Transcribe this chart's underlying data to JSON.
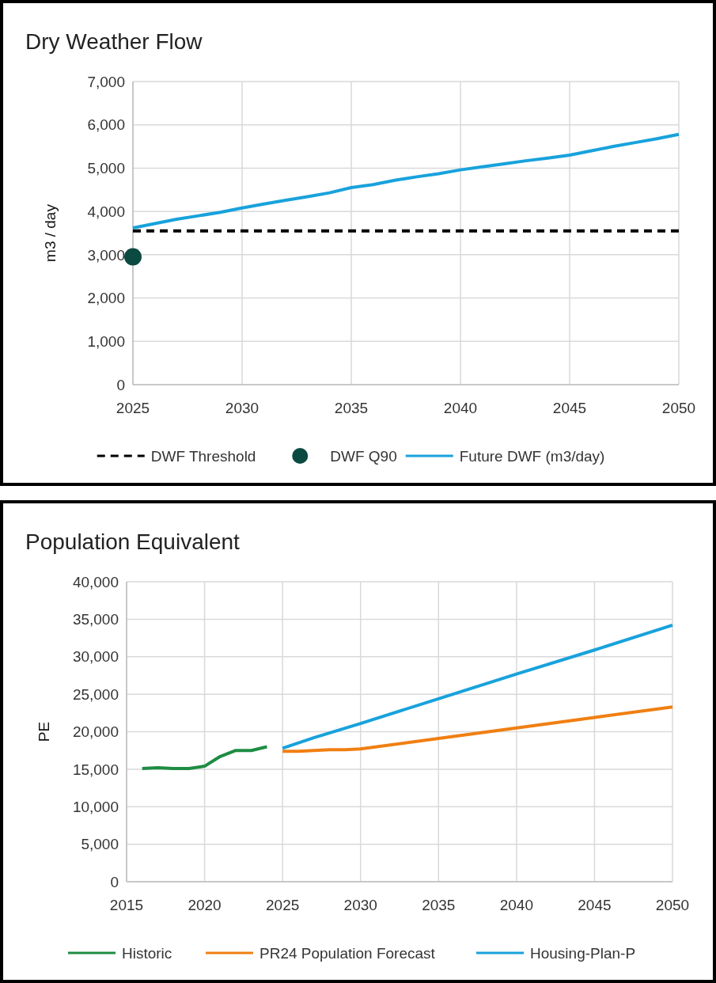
{
  "chart_data": [
    {
      "type": "line",
      "title": "Dry Weather Flow",
      "ylabel": "m3 / day",
      "xlim": [
        2025,
        2050
      ],
      "xticks": [
        2025,
        2030,
        2035,
        2040,
        2045,
        2050
      ],
      "ylim": [
        0,
        7000
      ],
      "yticks": [
        {
          "value": 0,
          "label": "0"
        },
        {
          "value": 1000,
          "label": "1,000"
        },
        {
          "value": 2000,
          "label": "2,000"
        },
        {
          "value": 3000,
          "label": "3,000"
        },
        {
          "value": 4000,
          "label": "4,000"
        },
        {
          "value": 5000,
          "label": "5,000"
        },
        {
          "value": 6000,
          "label": "6,000"
        },
        {
          "value": 7000,
          "label": "7,000"
        }
      ],
      "grid": true,
      "legend": "bottom",
      "series": [
        {
          "name": "DWF Threshold",
          "line_style": "dashed",
          "color": "#000000",
          "x": [
            2025,
            2050
          ],
          "values": [
            3550,
            3550
          ]
        },
        {
          "name": "DWF Q90",
          "type": "scatter",
          "marker": "circle",
          "color": "#0b4a40",
          "x": [
            2025
          ],
          "values": [
            2950
          ]
        },
        {
          "name": "Future DWF (m3/day)",
          "color": "#18a2dc",
          "x": [
            2025,
            2026,
            2027,
            2028,
            2029,
            2030,
            2031,
            2032,
            2033,
            2034,
            2035,
            2036,
            2037,
            2038,
            2039,
            2040,
            2041,
            2042,
            2043,
            2044,
            2045,
            2046,
            2047,
            2048,
            2049,
            2050
          ],
          "values": [
            3620,
            3720,
            3820,
            3900,
            3980,
            4080,
            4170,
            4260,
            4340,
            4430,
            4550,
            4620,
            4720,
            4800,
            4870,
            4960,
            5030,
            5100,
            5170,
            5230,
            5300,
            5400,
            5500,
            5590,
            5680,
            5780
          ]
        }
      ]
    },
    {
      "type": "line",
      "title": "Population Equivalent",
      "ylabel": "PE",
      "xlim": [
        2015,
        2050
      ],
      "xticks": [
        2015,
        2020,
        2025,
        2030,
        2035,
        2040,
        2045,
        2050
      ],
      "ylim": [
        0,
        40000
      ],
      "yticks": [
        {
          "value": 0,
          "label": "0"
        },
        {
          "value": 5000,
          "label": "5,000"
        },
        {
          "value": 10000,
          "label": "10,000"
        },
        {
          "value": 15000,
          "label": "15,000"
        },
        {
          "value": 20000,
          "label": "20,000"
        },
        {
          "value": 25000,
          "label": "25,000"
        },
        {
          "value": 30000,
          "label": "30,000"
        },
        {
          "value": 35000,
          "label": "35,000"
        },
        {
          "value": 40000,
          "label": "40,000"
        }
      ],
      "grid": true,
      "legend": "bottom",
      "series": [
        {
          "name": "Historic",
          "color": "#1e8c44",
          "x": [
            2016,
            2017,
            2018,
            2019,
            2020,
            2021,
            2022,
            2023,
            2024
          ],
          "values": [
            15100,
            15200,
            15100,
            15100,
            15400,
            16700,
            17500,
            17500,
            18000
          ]
        },
        {
          "name": "PR24 Population Forecast",
          "color": "#f07f12",
          "x": [
            2025,
            2026,
            2027,
            2028,
            2029,
            2030,
            2035,
            2040,
            2045,
            2050
          ],
          "values": [
            17400,
            17400,
            17500,
            17600,
            17600,
            17700,
            19100,
            20500,
            21900,
            23300
          ]
        },
        {
          "name": "Housing-Plan-P",
          "color": "#18a2dc",
          "x": [
            2025,
            2027,
            2030,
            2035,
            2040,
            2045,
            2050
          ],
          "values": [
            17800,
            19200,
            21100,
            24400,
            27700,
            30900,
            34200
          ]
        }
      ]
    }
  ]
}
